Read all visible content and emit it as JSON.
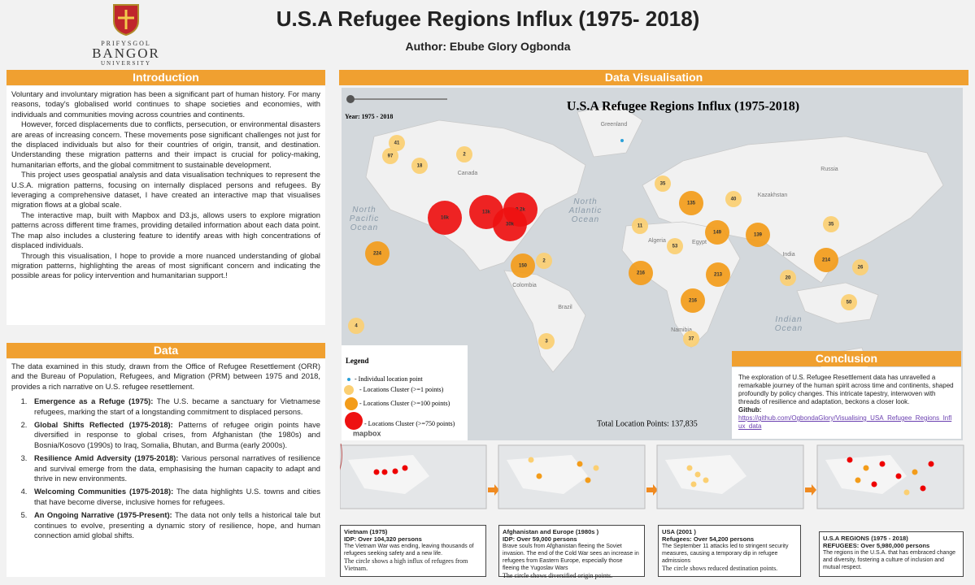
{
  "header": {
    "logo": [
      "PRIFYSGOL",
      "BANGOR",
      "UNIVERSITY"
    ],
    "title": "U.S.A Refugee Regions Influx (1975- 2018)",
    "author": "Author: Ebube Glory Ogbonda"
  },
  "introduction": {
    "heading": "Introduction",
    "paragraphs": [
      "Voluntary and involuntary migration has been a significant part of human history. For many reasons, today's globalised world continues to shape societies and economies, with individuals and communities moving across countries and continents.",
      "However, forced displacements due to conflicts, persecution, or environmental disasters are areas of increasing concern. These movements pose significant challenges not just for the displaced individuals but also for their countries of origin, transit, and destination. Understanding these migration patterns and their impact is crucial for policy-making, humanitarian efforts, and the global commitment to sustainable development.",
      "This project uses geospatial analysis and data visualisation techniques to represent the U.S.A. migration patterns, focusing on internally displaced persons and refugees. By leveraging a comprehensive dataset, I have created an interactive map that visualises migration flows at a global scale.",
      "The interactive map, built with Mapbox and D3.js, allows users to explore migration patterns across different time frames, providing detailed information about each data point. The map also includes a clustering feature to identify areas with high concentrations of displaced individuals.",
      "Through this visualisation, I hope to provide a more nuanced understanding of global migration patterns, highlighting the areas of most significant concern and indicating the possible areas for policy intervention and humanitarian support.!"
    ]
  },
  "data_section": {
    "heading": "Data",
    "intro": "The data examined in this study, drawn from the Office of Refugee Resettlement (ORR) and the Bureau of Population, Refugees, and Migration (PRM) between 1975 and 2018, provides a rich narrative on U.S. refugee resettlement.",
    "items": [
      {
        "title": "Emergence as a Refuge (1975):",
        "text": "The U.S. became a sanctuary for Vietnamese refugees, marking the start of a longstanding commitment to displaced persons."
      },
      {
        "title": "Global Shifts Reflected (1975-2018):",
        "text": "Patterns of refugee origin points have diversified in response to global crises, from Afghanistan (the 1980s) and Bosnia/Kosovo (1990s) to Iraq, Somalia, Bhutan, and Burma (early 2000s)."
      },
      {
        "title": "Resilience Amid Adversity (1975-2018):",
        "text": "Various personal narratives of resilience and survival emerge from the data, emphasising the human capacity to adapt and thrive in new environments."
      },
      {
        "title": "Welcoming Communities (1975-2018):",
        "text": "The data highlights U.S. towns and cities that have become diverse, inclusive homes for refugees."
      },
      {
        "title": "An Ongoing Narrative (1975-Present):",
        "text": "The data not only tells a historical tale but continues to evolve, presenting a dynamic story of resilience, hope, and human connection amid global shifts."
      }
    ]
  },
  "visualisation": {
    "heading": "Data Visualisation",
    "map_title": "U.S.A Refugee Regions Influx (1975-2018)",
    "year": "Year: 1975 - 2018",
    "total": "Total Location Points: 137,835",
    "attribution": "mapbox",
    "places": [
      {
        "lines": [
          "North",
          "Pacific",
          "Ocean"
        ]
      },
      {
        "lines": [
          "North",
          "Atlantic",
          "Ocean"
        ]
      },
      {
        "lines": [
          "Indian",
          "Ocean"
        ]
      },
      {
        "lines": [
          "Canada"
        ]
      },
      {
        "lines": [
          "Brazil"
        ]
      },
      {
        "lines": [
          "Colombia"
        ]
      },
      {
        "lines": [
          "Algeria"
        ]
      },
      {
        "lines": [
          "Kazakhstan"
        ]
      },
      {
        "lines": [
          "Russia"
        ]
      },
      {
        "lines": [
          "India"
        ]
      },
      {
        "lines": [
          "Egypt"
        ]
      },
      {
        "lines": [
          "Namibia"
        ]
      },
      {
        "lines": [
          "Greenland"
        ]
      }
    ],
    "clusters": [
      "41",
      "97",
      "18",
      "2",
      "16k",
      "13k",
      "9.2k",
      "30k",
      "224",
      "150",
      "2",
      "4",
      "3",
      "35",
      "135",
      "40",
      "11",
      "149",
      "139",
      "35",
      "53",
      "216",
      "213",
      "214",
      "26",
      "20",
      "50",
      "216",
      "37"
    ],
    "legend": {
      "title": "Legend",
      "items": [
        "- Individual location point",
        "- Locations Cluster (>=1 points)",
        "- Locations Cluster (>=100 points)",
        "- Locations Cluster (>=750 points)"
      ]
    }
  },
  "conclusion": {
    "heading": "Conclusion",
    "text": "The exploration of U.S. Refugee Resettlement data has unravelled a remarkable journey of the human spirit across time and continents, shaped profoundly by policy changes. This intricate tapestry, interwoven with threads of resilience and adaptation, beckons a closer look.",
    "github_label": "Github:",
    "github_url": "https://github.com/OgbondaGlory/Visualising_USA_Refugee_Regions_Influx_data"
  },
  "snapshots": [
    {
      "title": "Vietnam (1975)",
      "subtitle": "IDP: Over 104,320 persons",
      "text": "The Vietnam War was ending, leaving thousands of refugees seeking safety and a new life.",
      "note": "The circle shows a high influx of refugees from Vietnam."
    },
    {
      "title": "Afghanistan and Europe (1980s )",
      "subtitle": "IDP: Over 59,000 persons",
      "text": "Brave souls from Afghanistan fleeing the Soviet invasion. The end of the Cold War sees an increase in refugees from Eastern Europe, especially those fleeing the Yugoslav Wars",
      "note": "The circle shows diversified origin points."
    },
    {
      "title": "USA  (2001 )",
      "subtitle": "Refugees: Over 54,200 persons",
      "text": "The September 11 attacks led to stringent security measures, causing a temporary dip in refugee admissions",
      "note": "The circle shows reduced destination points."
    },
    {
      "title": "U.S.A REGIONS (1975 - 2018)",
      "subtitle": "REFUGEES: Over 5,980,000 persons",
      "text": "The regions in the U.S.A. that has embraced change and diversity, fostering a culture of inclusion and mutual respect.",
      "note": null
    }
  ]
}
